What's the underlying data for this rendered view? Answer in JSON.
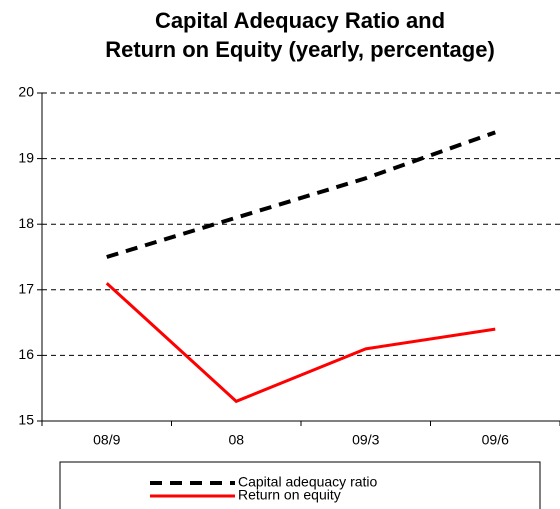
{
  "chart_data": {
    "type": "line",
    "title": [
      "Capital Adequacy Ratio and",
      "Return on Equity (yearly, percentage)"
    ],
    "categories": [
      "08/9",
      "08",
      "09/3",
      "09/6"
    ],
    "series": [
      {
        "name": "Capital adequacy ratio",
        "color": "#000000",
        "values": [
          17.5,
          18.1,
          18.7,
          19.4
        ]
      },
      {
        "name": "Return on equity",
        "color": "#ff0000",
        "values": [
          17.1,
          15.3,
          16.1,
          16.4
        ]
      }
    ],
    "ylim": [
      15,
      20
    ],
    "yticks": [
      15,
      16,
      17,
      18,
      19,
      20
    ],
    "grid": true
  }
}
